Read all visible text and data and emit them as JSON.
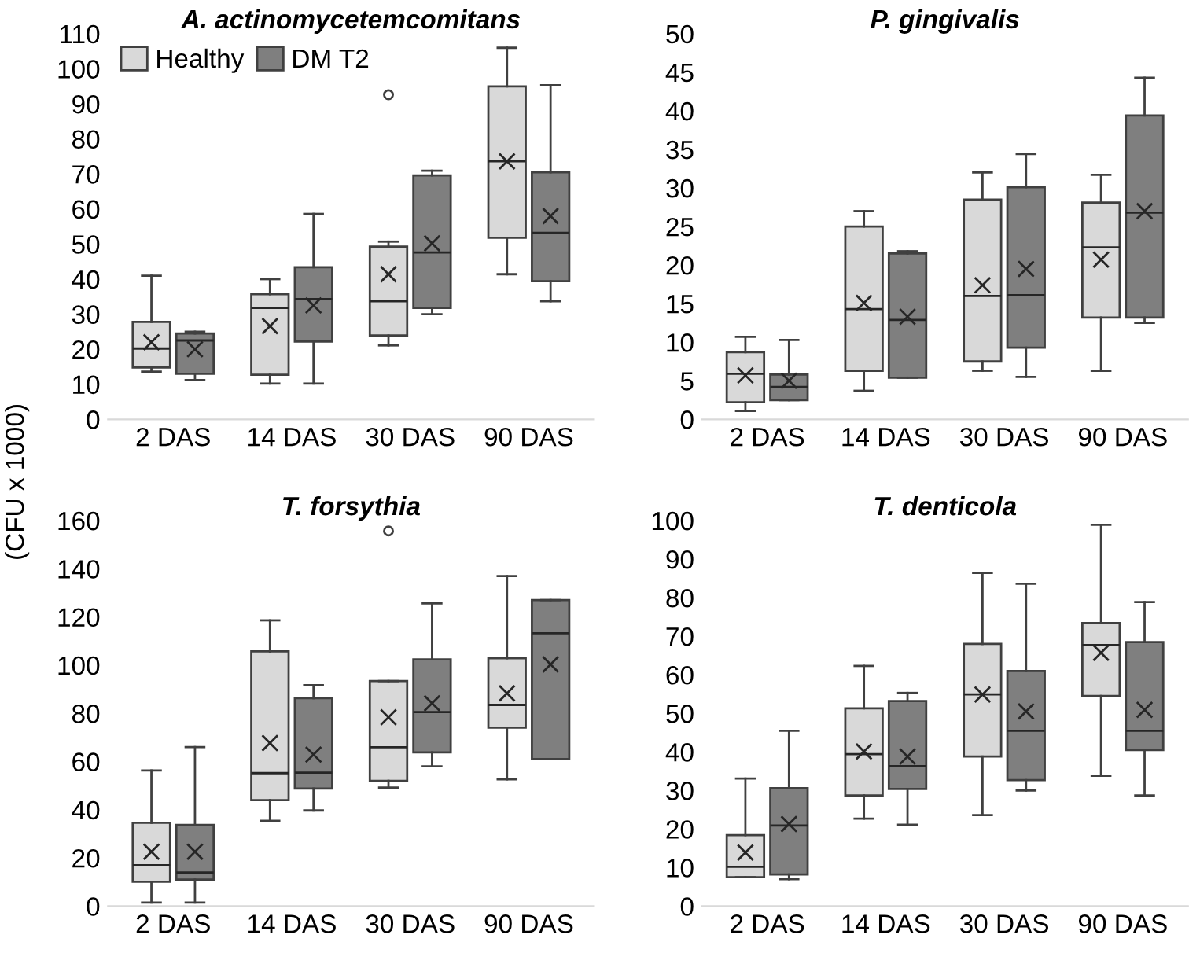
{
  "chart_data": [
    {
      "type": "box",
      "title": "A. actinomycetemcomitans",
      "ylabel": "(CFU x 1000)",
      "categories": [
        "2 DAS",
        "14 DAS",
        "30 DAS",
        "90 DAS"
      ],
      "ylim": [
        0,
        110
      ],
      "yticks": [
        0,
        10,
        20,
        30,
        40,
        50,
        60,
        70,
        80,
        90,
        100,
        110
      ],
      "grid": false,
      "legend": "top left",
      "series": [
        {
          "name": "Healthy",
          "color": "#d9d9d9",
          "boxes": [
            {
              "low": 13.6,
              "q1": 14.8,
              "median": 20.2,
              "q3": 27.8,
              "high": 41,
              "mean": 22
            },
            {
              "low": 10.2,
              "q1": 12.7,
              "median": 31.8,
              "q3": 35.7,
              "high": 40,
              "mean": 26.6
            },
            {
              "low": 21.1,
              "q1": 23.9,
              "median": 33.7,
              "q3": 49.3,
              "high": 50.7,
              "mean": 41.4,
              "outliers": [
                92.6
              ]
            },
            {
              "low": 41.4,
              "q1": 51.8,
              "median": 73.6,
              "q3": 95,
              "high": 106,
              "mean": 73.6
            }
          ]
        },
        {
          "name": "DM T2",
          "color": "#7f7f7f",
          "boxes": [
            {
              "low": 11.2,
              "q1": 13,
              "median": 22.5,
              "q3": 24.5,
              "high": 25,
              "mean": 20
            },
            {
              "low": 10.2,
              "q1": 22.2,
              "median": 34.3,
              "q3": 43.4,
              "high": 58.6,
              "mean": 32.5
            },
            {
              "low": 30,
              "q1": 31.8,
              "median": 47.6,
              "q3": 69.6,
              "high": 70.9,
              "mean": 50.2
            },
            {
              "low": 33.7,
              "q1": 39.4,
              "median": 53.2,
              "q3": 70.5,
              "high": 95.3,
              "mean": 58
            }
          ]
        }
      ]
    },
    {
      "type": "box",
      "title": "P. gingivalis",
      "categories": [
        "2 DAS",
        "14 DAS",
        "30 DAS",
        "90 DAS"
      ],
      "ylim": [
        0,
        50
      ],
      "yticks": [
        0,
        5,
        10,
        15,
        20,
        25,
        30,
        35,
        40,
        45,
        50
      ],
      "grid": false,
      "series": [
        {
          "color": "#d9d9d9",
          "boxes": [
            {
              "low": 1.1,
              "q1": 2.2,
              "median": 5.9,
              "q3": 8.7,
              "high": 10.7,
              "mean": 5.7
            },
            {
              "low": 3.7,
              "q1": 6.3,
              "median": 14.3,
              "q3": 25,
              "high": 27,
              "mean": 15.1
            },
            {
              "low": 6.3,
              "q1": 7.5,
              "median": 16,
              "q3": 28.5,
              "high": 32,
              "mean": 17.4
            },
            {
              "low": 6.3,
              "q1": 13.2,
              "median": 22.3,
              "q3": 28.1,
              "high": 31.7,
              "mean": 20.7
            }
          ]
        },
        {
          "color": "#7f7f7f",
          "boxes": [
            {
              "low": 2.5,
              "q1": 2.5,
              "median": 4.2,
              "q3": 5.8,
              "high": 10.3,
              "mean": 5
            },
            {
              "low": 5.4,
              "q1": 5.4,
              "median": 12.9,
              "q3": 21.5,
              "high": 21.8,
              "mean": 13.3
            },
            {
              "low": 5.5,
              "q1": 9.3,
              "median": 16.1,
              "q3": 30.1,
              "high": 34.4,
              "mean": 19.5
            },
            {
              "low": 12.5,
              "q1": 13.2,
              "median": 26.8,
              "q3": 39.4,
              "high": 44.3,
              "mean": 27
            }
          ]
        }
      ]
    },
    {
      "type": "box",
      "title": "T. forsythia",
      "categories": [
        "2 DAS",
        "14 DAS",
        "30 DAS",
        "90 DAS"
      ],
      "ylim": [
        0,
        160
      ],
      "yticks": [
        0,
        20,
        40,
        60,
        80,
        100,
        120,
        140,
        160
      ],
      "grid": false,
      "series": [
        {
          "color": "#d9d9d9",
          "boxes": [
            {
              "low": 1.5,
              "q1": 10.1,
              "median": 17,
              "q3": 34.6,
              "high": 56.3,
              "mean": 22.6
            },
            {
              "low": 35.4,
              "q1": 44,
              "median": 55.2,
              "q3": 105.7,
              "high": 118.6,
              "mean": 67.7
            },
            {
              "low": 49.2,
              "q1": 52,
              "median": 65.9,
              "q3": 93.4,
              "high": 93.4,
              "mean": 78.4,
              "outliers": [
                155.7
              ]
            },
            {
              "low": 52.6,
              "q1": 74.1,
              "median": 83.5,
              "q3": 102.9,
              "high": 137,
              "mean": 88.3
            }
          ]
        },
        {
          "color": "#7f7f7f",
          "boxes": [
            {
              "low": 1.5,
              "q1": 11,
              "median": 14,
              "q3": 33.7,
              "high": 66,
              "mean": 22.6
            },
            {
              "low": 39.7,
              "q1": 48.8,
              "median": 55.4,
              "q3": 86.3,
              "high": 91.7,
              "mean": 62.9
            },
            {
              "low": 58,
              "q1": 63.8,
              "median": 80.5,
              "q3": 102.4,
              "high": 125.6,
              "mean": 84.2
            },
            {
              "low": 61,
              "q1": 61,
              "median": 113.2,
              "q3": 127,
              "high": 127,
              "mean": 100.3
            }
          ]
        }
      ]
    },
    {
      "type": "box",
      "title": "T. denticola",
      "categories": [
        "2 DAS",
        "14 DAS",
        "30 DAS",
        "90 DAS"
      ],
      "ylim": [
        0,
        100
      ],
      "yticks": [
        0,
        10,
        20,
        30,
        40,
        50,
        60,
        70,
        80,
        90,
        100
      ],
      "grid": false,
      "series": [
        {
          "color": "#d9d9d9",
          "boxes": [
            {
              "low": 7.5,
              "q1": 7.5,
              "median": 10.2,
              "q3": 18.4,
              "high": 33.1,
              "mean": 13.9
            },
            {
              "low": 22.7,
              "q1": 28.7,
              "median": 39.4,
              "q3": 51.3,
              "high": 62.3,
              "mean": 40.1
            },
            {
              "low": 23.6,
              "q1": 38.8,
              "median": 54.9,
              "q3": 68,
              "high": 86.4,
              "mean": 54.9
            },
            {
              "low": 33.8,
              "q1": 54.5,
              "median": 67.7,
              "q3": 73.4,
              "high": 98.9,
              "mean": 65.7
            }
          ]
        },
        {
          "color": "#7f7f7f",
          "boxes": [
            {
              "low": 7,
              "q1": 8.2,
              "median": 20.9,
              "q3": 30.6,
              "high": 45.5,
              "mean": 21.3
            },
            {
              "low": 21.1,
              "q1": 30.4,
              "median": 36.3,
              "q3": 53.2,
              "high": 55.3,
              "mean": 38.8
            },
            {
              "low": 30,
              "q1": 32.7,
              "median": 45.5,
              "q3": 61,
              "high": 83.6,
              "mean": 50.5
            },
            {
              "low": 28.7,
              "q1": 40.5,
              "median": 45.5,
              "q3": 68.5,
              "high": 78.9,
              "mean": 50.9
            }
          ]
        }
      ]
    }
  ]
}
